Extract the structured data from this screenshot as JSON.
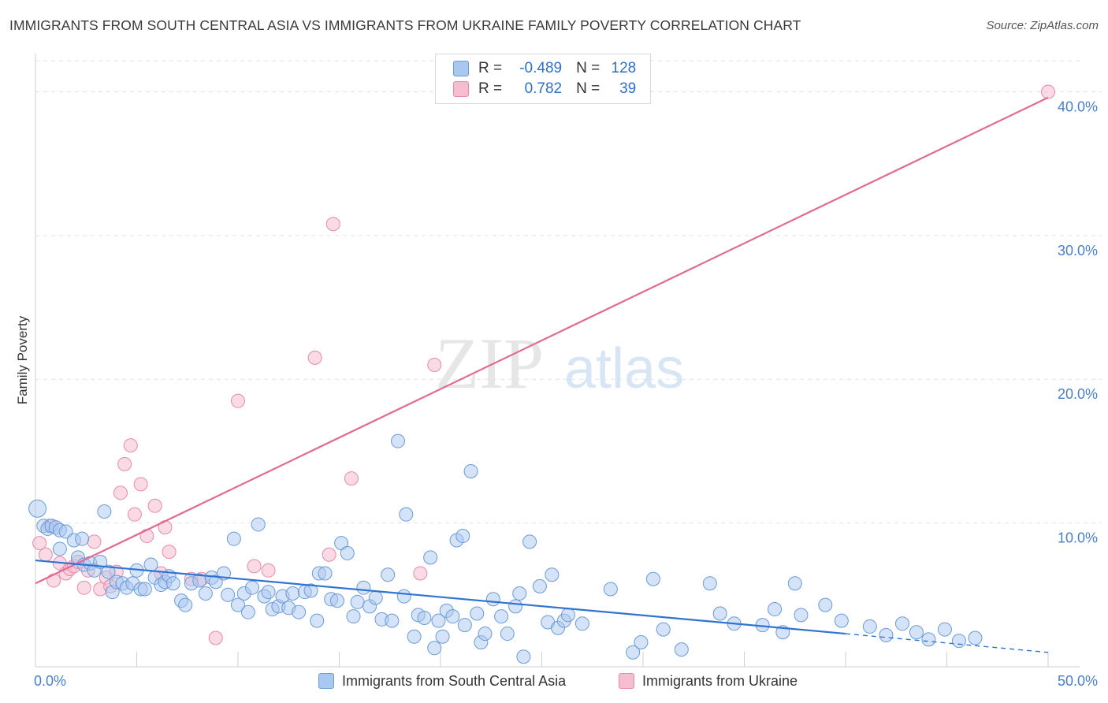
{
  "title": "IMMIGRANTS FROM SOUTH CENTRAL ASIA VS IMMIGRANTS FROM UKRAINE FAMILY POVERTY CORRELATION CHART",
  "source": "Source: ZipAtlas.com",
  "watermark": {
    "zip": "ZIP",
    "atlas": "atlas"
  },
  "colors": {
    "blue_fill": "#a9c8ef",
    "blue_stroke": "#6b9bd8",
    "blue_line": "#2f74d0",
    "pink_fill": "#f6bcd0",
    "pink_stroke": "#e98aab",
    "pink_line": "#e06b93"
  },
  "legend": {
    "rows": [
      {
        "r_label": "R =",
        "r_value": "-0.489",
        "n_label": "N =",
        "n_value": "128"
      },
      {
        "r_label": "R =",
        "r_value": "0.782",
        "n_label": "N =",
        "n_value": "39"
      }
    ]
  },
  "chart_data": {
    "type": "scatter",
    "title": "IMMIGRANTS FROM SOUTH CENTRAL ASIA VS IMMIGRANTS FROM UKRAINE FAMILY POVERTY CORRELATION CHART",
    "xlabel": "",
    "ylabel": "Family Poverty",
    "xlim": [
      0,
      50
    ],
    "ylim": [
      0,
      42
    ],
    "x_tick_labels": [
      "0.0%",
      "50.0%"
    ],
    "y_ticks": [
      10,
      20,
      30,
      40
    ],
    "y_tick_labels": [
      "10.0%",
      "20.0%",
      "30.0%",
      "40.0%"
    ],
    "grid": true,
    "legend_position": "top-center",
    "series": [
      {
        "name": "Immigrants from South Central Asia",
        "r": -0.489,
        "n": 128,
        "trend": {
          "x": [
            0,
            40
          ],
          "y": [
            7.4,
            2.3
          ],
          "dashed_extension": {
            "x": [
              40,
              50
            ],
            "y": [
              2.3,
              1.0
            ]
          }
        },
        "points": [
          [
            0.1,
            11.0
          ],
          [
            0.4,
            9.8
          ],
          [
            0.6,
            9.6
          ],
          [
            0.8,
            9.8
          ],
          [
            1.0,
            9.7
          ],
          [
            1.2,
            9.5
          ],
          [
            1.5,
            9.4
          ],
          [
            1.2,
            8.2
          ],
          [
            1.9,
            8.8
          ],
          [
            2.3,
            8.9
          ],
          [
            2.1,
            7.6
          ],
          [
            2.4,
            7.1
          ],
          [
            2.7,
            7.2
          ],
          [
            2.9,
            6.7
          ],
          [
            3.2,
            7.3
          ],
          [
            3.4,
            10.8
          ],
          [
            3.6,
            6.6
          ],
          [
            3.8,
            5.2
          ],
          [
            4.0,
            5.9
          ],
          [
            4.3,
            5.8
          ],
          [
            4.5,
            5.5
          ],
          [
            4.8,
            5.8
          ],
          [
            5.0,
            6.7
          ],
          [
            5.2,
            5.4
          ],
          [
            5.4,
            5.4
          ],
          [
            5.7,
            7.1
          ],
          [
            5.9,
            6.2
          ],
          [
            6.2,
            5.7
          ],
          [
            6.4,
            5.9
          ],
          [
            6.6,
            6.3
          ],
          [
            6.8,
            5.8
          ],
          [
            7.2,
            4.6
          ],
          [
            7.4,
            4.3
          ],
          [
            7.7,
            5.8
          ],
          [
            8.1,
            6.0
          ],
          [
            8.4,
            5.1
          ],
          [
            8.7,
            6.2
          ],
          [
            8.9,
            5.9
          ],
          [
            9.3,
            6.5
          ],
          [
            9.5,
            5.0
          ],
          [
            9.8,
            8.9
          ],
          [
            10.0,
            4.3
          ],
          [
            10.3,
            5.1
          ],
          [
            10.5,
            3.8
          ],
          [
            10.7,
            5.5
          ],
          [
            11.0,
            9.9
          ],
          [
            11.3,
            4.9
          ],
          [
            11.5,
            5.2
          ],
          [
            11.7,
            4.0
          ],
          [
            12.0,
            4.2
          ],
          [
            12.2,
            4.9
          ],
          [
            12.5,
            4.1
          ],
          [
            12.7,
            5.1
          ],
          [
            13.0,
            3.8
          ],
          [
            13.3,
            5.2
          ],
          [
            13.6,
            5.3
          ],
          [
            13.9,
            3.2
          ],
          [
            14.0,
            6.5
          ],
          [
            14.3,
            6.5
          ],
          [
            14.6,
            4.7
          ],
          [
            14.9,
            4.6
          ],
          [
            15.1,
            8.6
          ],
          [
            15.4,
            7.9
          ],
          [
            15.7,
            3.5
          ],
          [
            15.9,
            4.5
          ],
          [
            16.2,
            5.5
          ],
          [
            16.5,
            4.2
          ],
          [
            16.8,
            4.8
          ],
          [
            17.1,
            3.3
          ],
          [
            17.4,
            6.4
          ],
          [
            17.6,
            3.2
          ],
          [
            17.9,
            15.7
          ],
          [
            18.2,
            4.9
          ],
          [
            18.3,
            10.6
          ],
          [
            18.7,
            2.1
          ],
          [
            18.9,
            3.6
          ],
          [
            19.2,
            3.4
          ],
          [
            19.5,
            7.6
          ],
          [
            19.7,
            1.3
          ],
          [
            19.9,
            3.2
          ],
          [
            20.1,
            2.1
          ],
          [
            20.3,
            3.9
          ],
          [
            20.6,
            3.5
          ],
          [
            20.8,
            8.8
          ],
          [
            21.1,
            9.1
          ],
          [
            21.2,
            2.9
          ],
          [
            21.5,
            13.6
          ],
          [
            21.8,
            3.7
          ],
          [
            22.0,
            1.7
          ],
          [
            22.2,
            2.3
          ],
          [
            22.6,
            4.7
          ],
          [
            23.0,
            3.5
          ],
          [
            23.3,
            2.3
          ],
          [
            23.7,
            4.2
          ],
          [
            23.9,
            5.1
          ],
          [
            24.1,
            0.7
          ],
          [
            24.4,
            8.7
          ],
          [
            24.9,
            5.6
          ],
          [
            25.3,
            3.1
          ],
          [
            25.5,
            6.4
          ],
          [
            25.8,
            2.7
          ],
          [
            26.1,
            3.2
          ],
          [
            26.3,
            3.6
          ],
          [
            27.0,
            3.0
          ],
          [
            28.4,
            5.4
          ],
          [
            29.5,
            1.0
          ],
          [
            29.9,
            1.7
          ],
          [
            30.5,
            6.1
          ],
          [
            31.0,
            2.6
          ],
          [
            31.9,
            1.2
          ],
          [
            33.3,
            5.8
          ],
          [
            33.8,
            3.7
          ],
          [
            34.5,
            3.0
          ],
          [
            35.9,
            2.9
          ],
          [
            36.5,
            4.0
          ],
          [
            36.9,
            2.4
          ],
          [
            37.5,
            5.8
          ],
          [
            37.8,
            3.6
          ],
          [
            39.0,
            4.3
          ],
          [
            39.8,
            3.2
          ],
          [
            41.2,
            2.8
          ],
          [
            42.0,
            2.2
          ],
          [
            42.8,
            3.0
          ],
          [
            43.5,
            2.4
          ],
          [
            44.1,
            1.9
          ],
          [
            44.9,
            2.6
          ],
          [
            45.6,
            1.8
          ],
          [
            46.4,
            2.0
          ]
        ]
      },
      {
        "name": "Immigrants from Ukraine",
        "r": 0.782,
        "n": 39,
        "trend": {
          "x": [
            0,
            50
          ],
          "y": [
            5.8,
            39.6
          ]
        },
        "points": [
          [
            0.2,
            8.6
          ],
          [
            0.5,
            7.8
          ],
          [
            0.7,
            9.8
          ],
          [
            0.9,
            6.0
          ],
          [
            1.2,
            7.2
          ],
          [
            1.5,
            6.5
          ],
          [
            1.7,
            6.8
          ],
          [
            1.9,
            7.0
          ],
          [
            2.1,
            7.3
          ],
          [
            2.4,
            5.5
          ],
          [
            2.6,
            6.7
          ],
          [
            2.9,
            8.7
          ],
          [
            3.2,
            5.4
          ],
          [
            3.5,
            6.2
          ],
          [
            3.7,
            5.6
          ],
          [
            4.0,
            6.6
          ],
          [
            4.2,
            12.1
          ],
          [
            4.4,
            14.1
          ],
          [
            4.7,
            15.4
          ],
          [
            4.9,
            10.6
          ],
          [
            5.2,
            12.7
          ],
          [
            5.5,
            9.1
          ],
          [
            5.9,
            11.2
          ],
          [
            6.2,
            6.5
          ],
          [
            6.4,
            9.7
          ],
          [
            6.6,
            8.0
          ],
          [
            7.7,
            6.1
          ],
          [
            8.2,
            6.1
          ],
          [
            8.9,
            2.0
          ],
          [
            10.0,
            18.5
          ],
          [
            10.8,
            7.0
          ],
          [
            11.5,
            6.7
          ],
          [
            13.8,
            21.5
          ],
          [
            14.5,
            7.8
          ],
          [
            14.7,
            30.8
          ],
          [
            15.6,
            13.1
          ],
          [
            19.7,
            21.0
          ],
          [
            50.0,
            40.0
          ],
          [
            19.0,
            6.5
          ]
        ]
      }
    ]
  }
}
